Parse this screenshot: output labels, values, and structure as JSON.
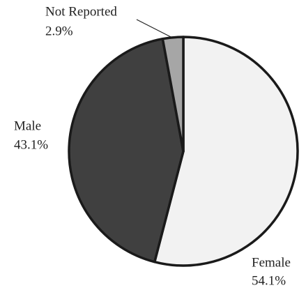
{
  "chart_data": {
    "type": "pie",
    "categories": [
      "Female",
      "Male",
      "Not Reported"
    ],
    "values": [
      54.1,
      43.1,
      2.9
    ],
    "value_labels": [
      "54.1%",
      "43.1%",
      "2.9%"
    ],
    "colors": [
      "#f2f2f2",
      "#404040",
      "#a6a6a6"
    ]
  }
}
